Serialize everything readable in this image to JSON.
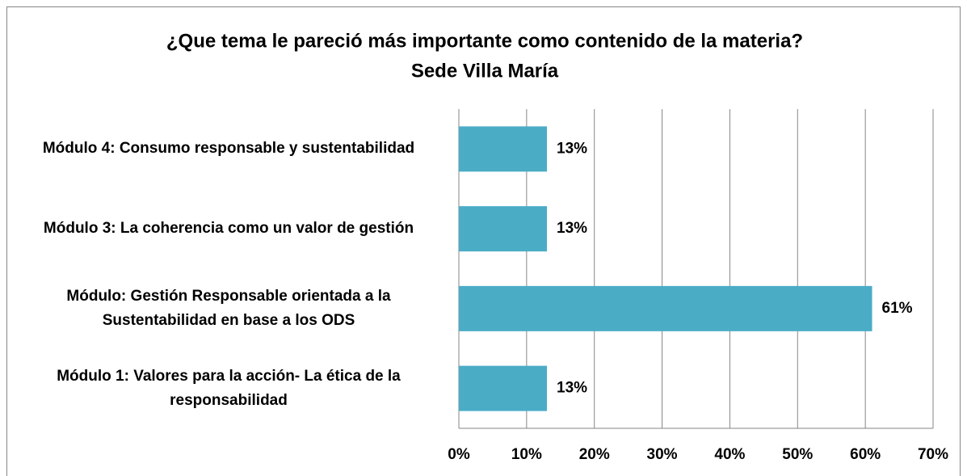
{
  "chart_data": {
    "type": "bar",
    "orientation": "horizontal",
    "title": [
      "¿Que tema le pareció más importante como contenido de la materia?",
      "Sede Villa María"
    ],
    "categories": [
      "Módulo 4: Consumo responsable y sustentabilidad",
      "Módulo 3:  La coherencia como un valor de gestión",
      "Módulo: Gestión Responsable orientada a la Sustentabilidad en base a los ODS",
      "Módulo 1: Valores para la acción- La ética de la responsabilidad"
    ],
    "values": [
      13,
      13,
      61,
      13
    ],
    "value_labels": [
      "13%",
      "13%",
      "61%",
      "13%"
    ],
    "color": "#4bacc6",
    "xlim": [
      0,
      70
    ],
    "xticks": [
      {
        "value": 0,
        "label": "0%"
      },
      {
        "value": 10,
        "label": "10%"
      },
      {
        "value": 20,
        "label": "20%"
      },
      {
        "value": 30,
        "label": "30%"
      },
      {
        "value": 40,
        "label": "40%"
      },
      {
        "value": 50,
        "label": "50%"
      },
      {
        "value": 60,
        "label": "60%"
      },
      {
        "value": 70,
        "label": "70%"
      }
    ],
    "grid": true
  }
}
